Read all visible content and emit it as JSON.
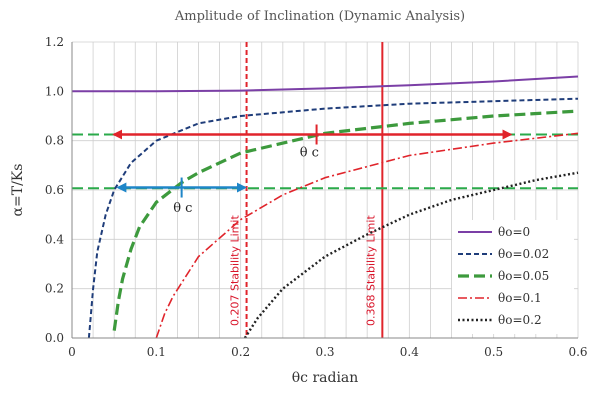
{
  "chart_data": {
    "type": "line",
    "title": "Amplitude of Inclination (Dynamic Analysis)",
    "xlabel": "θc radian",
    "ylabel": "α=T/Ks",
    "xlim": [
      0,
      0.6
    ],
    "ylim": [
      0,
      1.2
    ],
    "x_ticks": [
      "0",
      "0.1",
      "0.2",
      "0.3",
      "0.4",
      "0.5",
      "0.6"
    ],
    "y_ticks": [
      "0.0",
      "0.2",
      "0.4",
      "0.6",
      "0.8",
      "1.0",
      "1.2"
    ],
    "grid": true,
    "legend_position": "bottom-right",
    "series": [
      {
        "name": "θo=0",
        "color": "#7b3fa6",
        "style": "solid",
        "points": [
          [
            0,
            1.0
          ],
          [
            0.1,
            1.0
          ],
          [
            0.2,
            1.003
          ],
          [
            0.3,
            1.012
          ],
          [
            0.4,
            1.025
          ],
          [
            0.5,
            1.04
          ],
          [
            0.6,
            1.06
          ]
        ]
      },
      {
        "name": "θo=0.02",
        "color": "#1f3d7a",
        "style": "dashed",
        "points": [
          [
            0.02,
            0.0
          ],
          [
            0.025,
            0.2
          ],
          [
            0.03,
            0.35
          ],
          [
            0.04,
            0.5
          ],
          [
            0.05,
            0.6
          ],
          [
            0.07,
            0.71
          ],
          [
            0.1,
            0.8
          ],
          [
            0.15,
            0.87
          ],
          [
            0.2,
            0.9
          ],
          [
            0.3,
            0.93
          ],
          [
            0.4,
            0.95
          ],
          [
            0.5,
            0.96
          ],
          [
            0.6,
            0.97
          ]
        ]
      },
      {
        "name": "θo=0.05",
        "color": "#3d9a3d",
        "style": "long-dashed",
        "points": [
          [
            0.05,
            0.03
          ],
          [
            0.055,
            0.15
          ],
          [
            0.06,
            0.24
          ],
          [
            0.07,
            0.36
          ],
          [
            0.08,
            0.45
          ],
          [
            0.1,
            0.55
          ],
          [
            0.13,
            0.63
          ],
          [
            0.15,
            0.67
          ],
          [
            0.2,
            0.75
          ],
          [
            0.3,
            0.83
          ],
          [
            0.4,
            0.87
          ],
          [
            0.5,
            0.9
          ],
          [
            0.6,
            0.92
          ]
        ]
      },
      {
        "name": "θo=0.1",
        "color": "#e0242b",
        "style": "dash-dot",
        "points": [
          [
            0.1,
            0.0
          ],
          [
            0.11,
            0.1
          ],
          [
            0.12,
            0.17
          ],
          [
            0.15,
            0.33
          ],
          [
            0.2,
            0.48
          ],
          [
            0.25,
            0.58
          ],
          [
            0.3,
            0.65
          ],
          [
            0.4,
            0.74
          ],
          [
            0.5,
            0.79
          ],
          [
            0.6,
            0.83
          ]
        ]
      },
      {
        "name": "θo=0.2",
        "color": "#222222",
        "style": "dotted",
        "points": [
          [
            0.205,
            0.0
          ],
          [
            0.22,
            0.08
          ],
          [
            0.25,
            0.2
          ],
          [
            0.3,
            0.33
          ],
          [
            0.35,
            0.42
          ],
          [
            0.4,
            0.5
          ],
          [
            0.45,
            0.56
          ],
          [
            0.5,
            0.6
          ],
          [
            0.55,
            0.64
          ],
          [
            0.6,
            0.67
          ]
        ]
      }
    ],
    "reference_lines": [
      {
        "orientation": "vertical",
        "x": 0.207,
        "color": "#e0242b",
        "style": "dashed",
        "label": "0.207 Stability Limit"
      },
      {
        "orientation": "vertical",
        "x": 0.368,
        "color": "#e0242b",
        "style": "solid",
        "label": "0.368 Stability Limit"
      },
      {
        "orientation": "horizontal",
        "y": 0.825,
        "color": "#2aaa4a",
        "style": "long-dashed"
      },
      {
        "orientation": "horizontal",
        "y": 0.607,
        "color": "#2aaa4a",
        "style": "long-dashed"
      }
    ],
    "annotations": [
      {
        "kind": "double-arrow",
        "y": 0.825,
        "x_from": 0.05,
        "x_to": 0.52,
        "marker_x": 0.29,
        "color": "#e0242b",
        "label": "θ c",
        "label_at": [
          0.27,
          0.735
        ]
      },
      {
        "kind": "double-arrow",
        "y": 0.61,
        "x_from": 0.055,
        "x_to": 0.205,
        "marker_x": 0.13,
        "color": "#1f86c8",
        "label": "θ c",
        "label_at": [
          0.12,
          0.51
        ]
      }
    ]
  }
}
